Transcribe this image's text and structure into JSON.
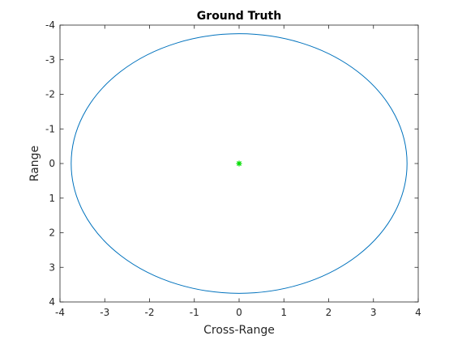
{
  "chart_data": {
    "type": "line",
    "title": "Ground Truth",
    "xlabel": "Cross-Range",
    "ylabel": "Range",
    "xlim": [
      -4,
      4
    ],
    "ylim": [
      -4,
      4
    ],
    "y_reversed": true,
    "grid": false,
    "box": true,
    "xticks": [
      -4,
      -3,
      -2,
      -1,
      0,
      1,
      2,
      3,
      4
    ],
    "yticks": [
      -4,
      -3,
      -2,
      -1,
      0,
      1,
      2,
      3,
      4
    ],
    "xtick_labels": [
      "-4",
      "-3",
      "-2",
      "-1",
      "0",
      "1",
      "2",
      "3",
      "4"
    ],
    "ytick_labels": [
      "-4",
      "-3",
      "-2",
      "-1",
      "0",
      "1",
      "2",
      "3",
      "4"
    ],
    "series": [
      {
        "kind": "circle",
        "center": [
          0,
          0
        ],
        "radius": 3.75,
        "color": "#0072BD"
      }
    ],
    "markers": [
      {
        "x": 0,
        "y": 0,
        "symbol": "*",
        "color": "#00DD00"
      }
    ]
  },
  "colors": {
    "axis": "#262626",
    "background": "#ffffff"
  }
}
